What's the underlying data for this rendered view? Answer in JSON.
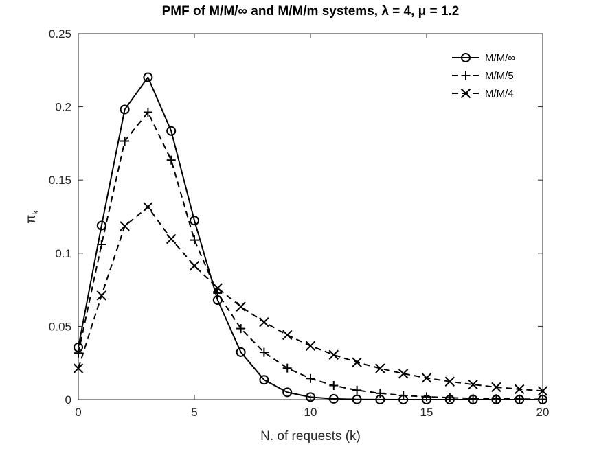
{
  "chart_data": {
    "type": "line",
    "title": "PMF of M/M/∞ and M/M/m systems, λ = 4, μ = 1.2",
    "xlabel": "N. of requests (k)",
    "ylabel": {
      "base": "π",
      "subscript": "k"
    },
    "xlim": [
      0,
      20
    ],
    "ylim": [
      0,
      0.25
    ],
    "xticks": [
      0,
      5,
      10,
      15,
      20
    ],
    "yticks": [
      0,
      0.05,
      0.1,
      0.15,
      0.2,
      0.25
    ],
    "ytick_labels": [
      "0",
      "0.05",
      "0.1",
      "0.15",
      "0.2",
      "0.25"
    ],
    "grid": false,
    "legend_position": "top-right",
    "x": [
      0,
      1,
      2,
      3,
      4,
      5,
      6,
      7,
      8,
      9,
      10,
      11,
      12,
      13,
      14,
      15,
      16,
      17,
      18,
      19,
      20
    ],
    "series": [
      {
        "name": "M/M/∞",
        "marker": "circle",
        "line_style": "solid",
        "color": "#000000",
        "values": [
          0.0357,
          0.1189,
          0.1982,
          0.2202,
          0.1835,
          0.1223,
          0.068,
          0.0324,
          0.0135,
          0.005,
          0.0017,
          0.0005,
          0.00014,
          4e-05,
          1e-05,
          0.0,
          0.0,
          0.0,
          0.0,
          0.0,
          0.0
        ]
      },
      {
        "name": "M/M/5",
        "marker": "plus",
        "line_style": "dashed",
        "color": "#000000",
        "values": [
          0.0318,
          0.106,
          0.1766,
          0.1963,
          0.1636,
          0.109,
          0.0727,
          0.0485,
          0.0323,
          0.0215,
          0.0144,
          0.0096,
          0.0064,
          0.0043,
          0.0028,
          0.0019,
          0.0013,
          0.0008,
          0.0006,
          0.0004,
          0.0002
        ]
      },
      {
        "name": "M/M/4",
        "marker": "cross",
        "line_style": "dashed",
        "color": "#000000",
        "values": [
          0.0213,
          0.0711,
          0.1185,
          0.1316,
          0.1097,
          0.0914,
          0.0762,
          0.0635,
          0.0529,
          0.0441,
          0.0367,
          0.0306,
          0.0255,
          0.0213,
          0.0177,
          0.0148,
          0.0123,
          0.0103,
          0.0085,
          0.0071,
          0.0059
        ]
      }
    ]
  }
}
